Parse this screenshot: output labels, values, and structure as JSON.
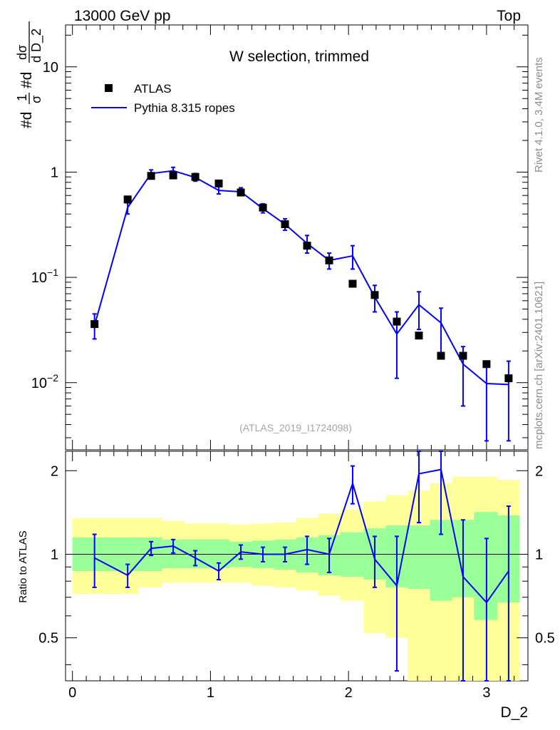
{
  "header": {
    "left": "13000 GeV pp",
    "right": "Top"
  },
  "side": {
    "rivet": "Rivet 4.1.0,  3.4M events",
    "mcplots": "mcplots.cern.ch [arXiv:2401.10621]"
  },
  "chart_data": {
    "type": "scatter",
    "title": "W selection, trimmed",
    "analysis_label": "(ATLAS_2019_I1724098)",
    "xlabel": "D_2",
    "ylabel_main": "#d 1/σ #d dσ/d D_2",
    "ylabel_main_parts": {
      "a": "#d",
      "b": "1",
      "c": "σ",
      "d": "#d",
      "e": "dσ",
      "f": "d D_2"
    },
    "ylabel_ratio": "Ratio to ATLAS",
    "xlim": [
      -0.05,
      3.3
    ],
    "ylim_main": [
      0.0023,
      25
    ],
    "ylim_ratio": [
      0.35,
      2.35
    ],
    "main_yticks": [
      {
        "value": 10,
        "label": "10"
      },
      {
        "value": 1,
        "label": "1"
      },
      {
        "value": 0.1,
        "label": "10",
        "exp": "−1"
      },
      {
        "value": 0.01,
        "label": "10",
        "exp": "−2"
      }
    ],
    "ratio_yticks": [
      {
        "value": 0.5,
        "label": "0.5"
      },
      {
        "value": 1,
        "label": "1"
      },
      {
        "value": 2,
        "label": "2"
      }
    ],
    "xticks": [
      {
        "value": 0,
        "label": "0"
      },
      {
        "value": 1,
        "label": "1"
      },
      {
        "value": 2,
        "label": "2"
      },
      {
        "value": 3,
        "label": "3"
      }
    ],
    "x": [
      0.16,
      0.4,
      0.57,
      0.73,
      0.89,
      1.06,
      1.22,
      1.38,
      1.54,
      1.7,
      1.86,
      2.03,
      2.19,
      2.35,
      2.51,
      2.67,
      2.83,
      3.0,
      3.16
    ],
    "bin_edges": [
      0.0,
      0.33,
      0.48,
      0.65,
      0.81,
      0.97,
      1.14,
      1.3,
      1.46,
      1.62,
      1.78,
      1.94,
      2.11,
      2.27,
      2.43,
      2.59,
      2.75,
      2.91,
      3.08,
      3.24
    ],
    "legend": [
      {
        "name": "ATLAS",
        "marker": "square",
        "color": "#000000"
      },
      {
        "name": "Pythia 8.315 ropes",
        "marker": "line",
        "color": "#0000ff"
      }
    ],
    "series": [
      {
        "name": "ATLAS",
        "values": [
          0.036,
          0.55,
          0.92,
          0.93,
          0.9,
          0.78,
          0.64,
          0.46,
          0.32,
          0.2,
          0.145,
          0.087,
          0.068,
          0.038,
          0.028,
          0.018,
          0.018,
          0.015,
          0.011
        ]
      },
      {
        "name": "Pythia 8.315 ropes",
        "values": [
          0.035,
          0.46,
          0.97,
          1.03,
          0.89,
          0.67,
          0.65,
          0.45,
          0.32,
          0.21,
          0.145,
          0.16,
          0.065,
          0.029,
          0.055,
          0.037,
          0.015,
          0.0098,
          0.0096
        ],
        "err_low": [
          0.026,
          0.4,
          0.9,
          0.96,
          0.82,
          0.62,
          0.6,
          0.41,
          0.28,
          0.17,
          0.12,
          0.12,
          0.047,
          0.011,
          0.032,
          0.019,
          0.006,
          0.0028,
          0.0028
        ],
        "err_high": [
          0.045,
          0.51,
          1.05,
          1.11,
          0.97,
          0.73,
          0.71,
          0.5,
          0.36,
          0.25,
          0.17,
          0.2,
          0.084,
          0.047,
          0.073,
          0.051,
          0.022,
          0.016,
          0.016
        ],
        "ratio": [
          0.97,
          0.84,
          1.05,
          1.07,
          0.97,
          0.87,
          1.02,
          1.0,
          1.0,
          1.04,
          1.0,
          1.8,
          0.96,
          0.77,
          1.95,
          2.02,
          0.83,
          0.67,
          0.87
        ],
        "ratio_low": [
          0.76,
          0.76,
          0.99,
          1.01,
          0.91,
          0.81,
          0.96,
          0.94,
          0.94,
          0.92,
          0.86,
          1.52,
          0.76,
          0.38,
          1.3,
          1.18,
          0.33,
          0.2,
          0.25
        ],
        "ratio_high": [
          1.18,
          0.92,
          1.11,
          1.13,
          1.03,
          0.93,
          1.08,
          1.06,
          1.06,
          1.16,
          1.14,
          2.08,
          1.16,
          1.16,
          2.4,
          2.4,
          1.33,
          1.14,
          1.49
        ]
      }
    ],
    "bands": {
      "inner": {
        "color": "#99ff99",
        "low": [
          0.87,
          0.87,
          0.87,
          0.89,
          0.89,
          0.89,
          0.9,
          0.89,
          0.88,
          0.86,
          0.84,
          0.83,
          0.81,
          0.76,
          0.75,
          0.68,
          0.7,
          0.58,
          0.67
        ],
        "high": [
          1.15,
          1.15,
          1.15,
          1.13,
          1.13,
          1.13,
          1.11,
          1.12,
          1.13,
          1.15,
          1.17,
          1.2,
          1.24,
          1.27,
          1.27,
          1.33,
          1.33,
          1.42,
          1.38
        ]
      },
      "outer": {
        "color": "#ffff99",
        "low": [
          0.72,
          0.72,
          0.76,
          0.79,
          0.79,
          0.79,
          0.79,
          0.77,
          0.76,
          0.74,
          0.71,
          0.68,
          0.52,
          0.5,
          0.35,
          0.35,
          0.35,
          0.35,
          0.35
        ],
        "high": [
          1.35,
          1.35,
          1.35,
          1.32,
          1.29,
          1.29,
          1.28,
          1.29,
          1.3,
          1.35,
          1.4,
          1.45,
          1.55,
          1.63,
          1.7,
          1.8,
          1.9,
          1.9,
          1.85
        ]
      }
    }
  }
}
